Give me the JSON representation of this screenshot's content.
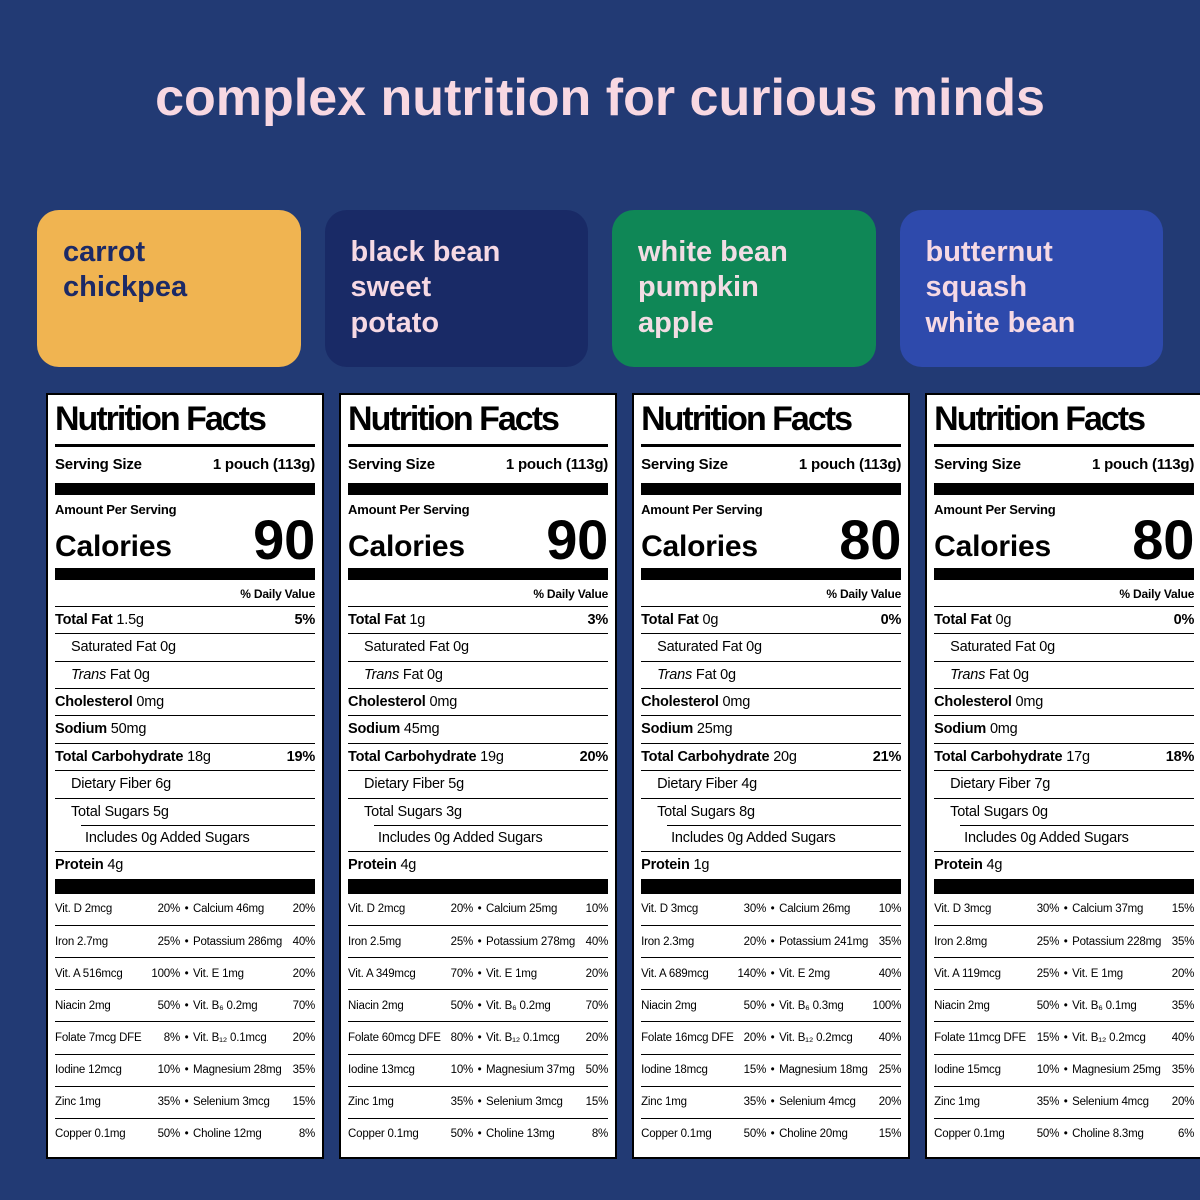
{
  "theme": {
    "background": "#223A74",
    "title_color": "#F8D8E2",
    "label_background": "#FFFFFF",
    "label_text": "#000000"
  },
  "header": {
    "title": "complex nutrition for curious minds"
  },
  "badges": [
    {
      "label": "carrot\nchickpea",
      "bg": "#F0B451",
      "fg": "#1C2A66"
    },
    {
      "label": "black bean\nsweet\npotato",
      "bg": "#192A66",
      "fg": "#F6D9E4"
    },
    {
      "label": "white bean\npumpkin\napple",
      "bg": "#0F8756",
      "fg": "#F2DDE4"
    },
    {
      "label": "butternut\nsquash\nwhite bean",
      "bg": "#2E4AAC",
      "fg": "#F6D9E4"
    }
  ],
  "nutrition_common": {
    "title": "Nutrition Facts",
    "serving_label": "Serving Size",
    "serving_value": "1 pouch (113g)",
    "amount_label": "Amount Per Serving",
    "calories_label": "Calories",
    "dv_label": "% Daily Value",
    "bullet": "•"
  },
  "labels": [
    {
      "flavor": "carrot chickpea",
      "calories": "90",
      "rows": [
        {
          "b": "Total Fat",
          "t": " 1.5g",
          "pct": "5%"
        },
        {
          "t": "Saturated Fat 0g",
          "cls": "ind1"
        },
        {
          "i": "Trans",
          "t": " Fat 0g",
          "cls": "ind1"
        },
        {
          "b": "Cholesterol",
          "t": " 0mg"
        },
        {
          "b": "Sodium",
          "t": " 50mg"
        },
        {
          "b": "Total Carbohydrate",
          "t": " 18g",
          "pct": "19%"
        },
        {
          "t": "Dietary Fiber 6g",
          "cls": "ind1"
        },
        {
          "t": "Total Sugars 5g",
          "cls": "ind1"
        },
        {
          "t": "Includes 0g Added Sugars",
          "cls": "ind2 sep-indent"
        },
        {
          "b": "Protein",
          "t": " 4g"
        }
      ],
      "micros": [
        {
          "n1": "Vit. D 2mcg",
          "p1": "20%",
          "n2": "Calcium 46mg",
          "p2": "20%"
        },
        {
          "n1": "Iron 2.7mg",
          "p1": "25%",
          "n2": "Potassium 286mg",
          "p2": "40%"
        },
        {
          "n1": "Vit. A 516mcg",
          "p1": "100%",
          "n2": "Vit. E 1mg",
          "p2": "20%"
        },
        {
          "n1": "Niacin 2mg",
          "p1": "50%",
          "n2": "Vit. B₆ 0.2mg",
          "p2": "70%"
        },
        {
          "n1": "Folate 7mcg DFE",
          "p1": "8%",
          "n2": "Vit. B₁₂ 0.1mcg",
          "p2": "20%"
        },
        {
          "n1": "Iodine 12mcg",
          "p1": "10%",
          "n2": "Magnesium 28mg",
          "p2": "35%"
        },
        {
          "n1": "Zinc 1mg",
          "p1": "35%",
          "n2": "Selenium 3mcg",
          "p2": "15%"
        },
        {
          "n1": "Copper 0.1mg",
          "p1": "50%",
          "n2": "Choline 12mg",
          "p2": "8%"
        }
      ]
    },
    {
      "flavor": "black bean sweet potato",
      "calories": "90",
      "rows": [
        {
          "b": "Total Fat",
          "t": " 1g",
          "pct": "3%"
        },
        {
          "t": "Saturated Fat 0g",
          "cls": "ind1"
        },
        {
          "i": "Trans",
          "t": " Fat 0g",
          "cls": "ind1"
        },
        {
          "b": "Cholesterol",
          "t": " 0mg"
        },
        {
          "b": "Sodium",
          "t": " 45mg"
        },
        {
          "b": "Total Carbohydrate",
          "t": " 19g",
          "pct": "20%"
        },
        {
          "t": "Dietary Fiber 5g",
          "cls": "ind1"
        },
        {
          "t": "Total Sugars 3g",
          "cls": "ind1"
        },
        {
          "t": "Includes 0g Added Sugars",
          "cls": "ind2 sep-indent"
        },
        {
          "b": "Protein",
          "t": " 4g"
        }
      ],
      "micros": [
        {
          "n1": "Vit. D 2mcg",
          "p1": "20%",
          "n2": "Calcium 25mg",
          "p2": "10%"
        },
        {
          "n1": "Iron 2.5mg",
          "p1": "25%",
          "n2": "Potassium 278mg",
          "p2": "40%"
        },
        {
          "n1": "Vit. A 349mcg",
          "p1": "70%",
          "n2": "Vit. E 1mg",
          "p2": "20%"
        },
        {
          "n1": "Niacin 2mg",
          "p1": "50%",
          "n2": "Vit. B₆ 0.2mg",
          "p2": "70%"
        },
        {
          "n1": "Folate 60mcg DFE",
          "p1": "80%",
          "n2": "Vit. B₁₂ 0.1mcg",
          "p2": "20%"
        },
        {
          "n1": "Iodine 13mcg",
          "p1": "10%",
          "n2": "Magnesium 37mg",
          "p2": "50%"
        },
        {
          "n1": "Zinc 1mg",
          "p1": "35%",
          "n2": "Selenium 3mcg",
          "p2": "15%"
        },
        {
          "n1": "Copper 0.1mg",
          "p1": "50%",
          "n2": "Choline 13mg",
          "p2": "8%"
        }
      ]
    },
    {
      "flavor": "white bean pumpkin apple",
      "calories": "80",
      "rows": [
        {
          "b": "Total Fat",
          "t": " 0g",
          "pct": "0%"
        },
        {
          "t": "Saturated Fat 0g",
          "cls": "ind1"
        },
        {
          "i": "Trans",
          "t": " Fat 0g",
          "cls": "ind1"
        },
        {
          "b": "Cholesterol",
          "t": " 0mg"
        },
        {
          "b": "Sodium",
          "t": " 25mg"
        },
        {
          "b": "Total Carbohydrate",
          "t": " 20g",
          "pct": "21%"
        },
        {
          "t": "Dietary Fiber 4g",
          "cls": "ind1"
        },
        {
          "t": "Total Sugars 8g",
          "cls": "ind1"
        },
        {
          "t": "Includes 0g Added Sugars",
          "cls": "ind2 sep-indent"
        },
        {
          "b": "Protein",
          "t": " 1g"
        }
      ],
      "micros": [
        {
          "n1": "Vit. D 3mcg",
          "p1": "30%",
          "n2": "Calcium 26mg",
          "p2": "10%"
        },
        {
          "n1": "Iron 2.3mg",
          "p1": "20%",
          "n2": "Potassium 241mg",
          "p2": "35%"
        },
        {
          "n1": "Vit. A 689mcg",
          "p1": "140%",
          "n2": "Vit. E 2mg",
          "p2": "40%"
        },
        {
          "n1": "Niacin 2mg",
          "p1": "50%",
          "n2": "Vit. B₆ 0.3mg",
          "p2": "100%"
        },
        {
          "n1": "Folate 16mcg DFE",
          "p1": "20%",
          "n2": "Vit. B₁₂ 0.2mcg",
          "p2": "40%"
        },
        {
          "n1": "Iodine 18mcg",
          "p1": "15%",
          "n2": "Magnesium 18mg",
          "p2": "25%"
        },
        {
          "n1": "Zinc 1mg",
          "p1": "35%",
          "n2": "Selenium 4mcg",
          "p2": "20%"
        },
        {
          "n1": "Copper 0.1mg",
          "p1": "50%",
          "n2": "Choline 20mg",
          "p2": "15%"
        }
      ]
    },
    {
      "flavor": "butternut squash white bean",
      "calories": "80",
      "rows": [
        {
          "b": "Total Fat",
          "t": " 0g",
          "pct": "0%"
        },
        {
          "t": "Saturated Fat 0g",
          "cls": "ind1"
        },
        {
          "i": "Trans",
          "t": " Fat 0g",
          "cls": "ind1"
        },
        {
          "b": "Cholesterol",
          "t": " 0mg"
        },
        {
          "b": "Sodium",
          "t": " 0mg"
        },
        {
          "b": "Total Carbohydrate",
          "t": " 17g",
          "pct": "18%"
        },
        {
          "t": "Dietary Fiber 7g",
          "cls": "ind1"
        },
        {
          "t": "Total Sugars 0g",
          "cls": "ind1"
        },
        {
          "t": "Includes 0g Added Sugars",
          "cls": "ind2 sep-indent"
        },
        {
          "b": "Protein",
          "t": " 4g"
        }
      ],
      "micros": [
        {
          "n1": "Vit. D 3mcg",
          "p1": "30%",
          "n2": "Calcium 37mg",
          "p2": "15%"
        },
        {
          "n1": "Iron 2.8mg",
          "p1": "25%",
          "n2": "Potassium 228mg",
          "p2": "35%"
        },
        {
          "n1": "Vit. A 119mcg",
          "p1": "25%",
          "n2": "Vit. E 1mg",
          "p2": "20%"
        },
        {
          "n1": "Niacin 2mg",
          "p1": "50%",
          "n2": "Vit. B₆ 0.1mg",
          "p2": "35%"
        },
        {
          "n1": "Folate 11mcg DFE",
          "p1": "15%",
          "n2": "Vit. B₁₂ 0.2mcg",
          "p2": "40%"
        },
        {
          "n1": "Iodine 15mcg",
          "p1": "10%",
          "n2": "Magnesium 25mg",
          "p2": "35%"
        },
        {
          "n1": "Zinc 1mg",
          "p1": "35%",
          "n2": "Selenium 4mcg",
          "p2": "20%"
        },
        {
          "n1": "Copper 0.1mg",
          "p1": "50%",
          "n2": "Choline 8.3mg",
          "p2": "6%"
        }
      ]
    }
  ]
}
